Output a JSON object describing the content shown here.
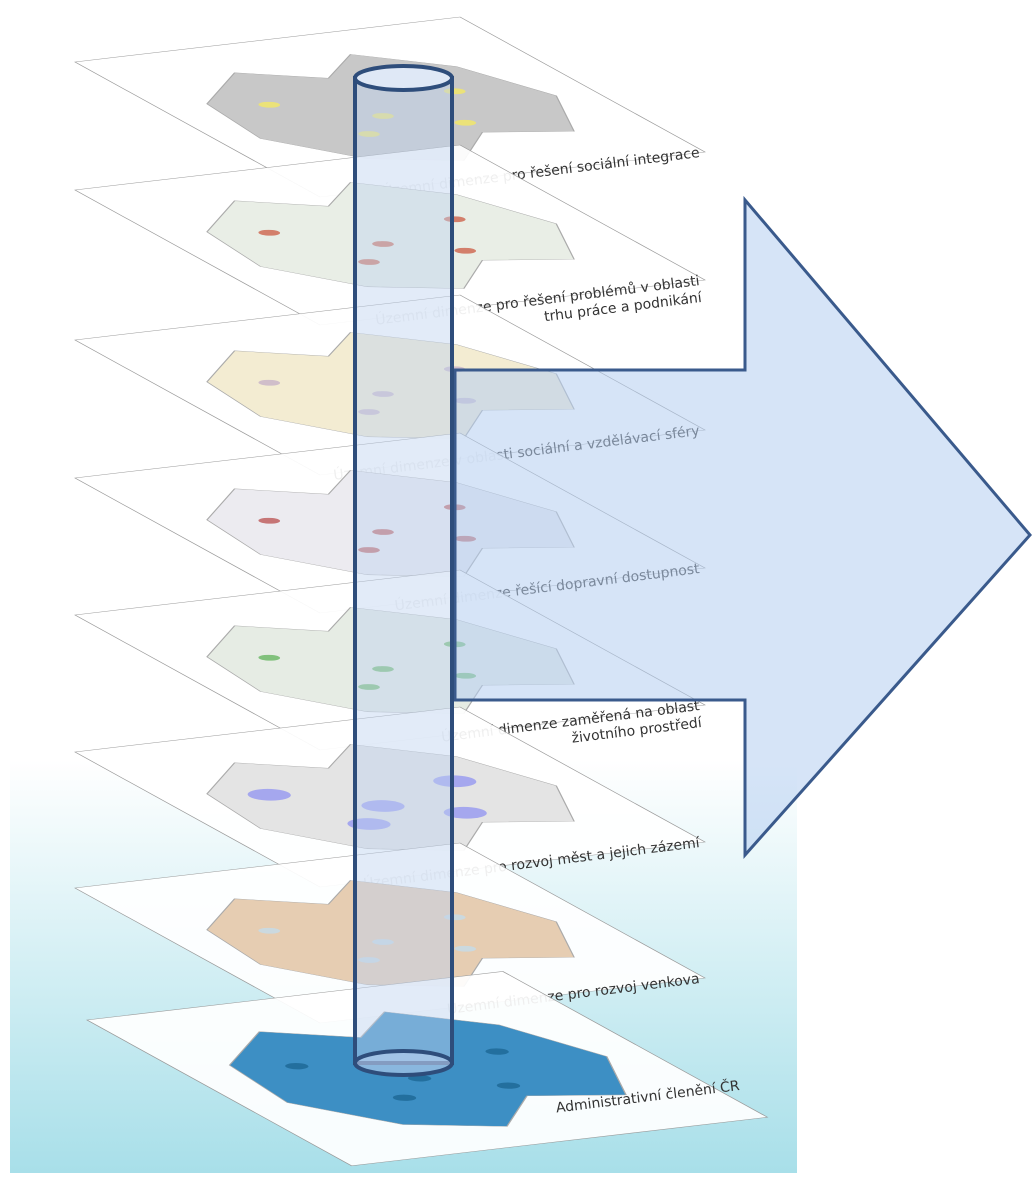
{
  "layers": [
    {
      "lines": [
        "Územní dimenze pro řešení sociální integrace"
      ]
    },
    {
      "lines": [
        "Územní dimenze pro řešení problémů v oblasti",
        "trhu práce a podnikání"
      ]
    },
    {
      "lines": [
        "Územní dimenze v oblasti sociální a vzdělávací sféry"
      ]
    },
    {
      "lines": [
        "Územní dimenze řešící dopravní dostupnost"
      ]
    },
    {
      "lines": [
        "Územní dimenze zaměřená na oblast",
        "životního prostředí"
      ]
    },
    {
      "lines": [
        "Územní dimenze pro rozvoj měst a jejich zázemí"
      ]
    },
    {
      "lines": [
        "Územní dimenze pro rozvoj venkova"
      ]
    },
    {
      "lines": [
        "Administrativní členění ČR"
      ]
    }
  ]
}
